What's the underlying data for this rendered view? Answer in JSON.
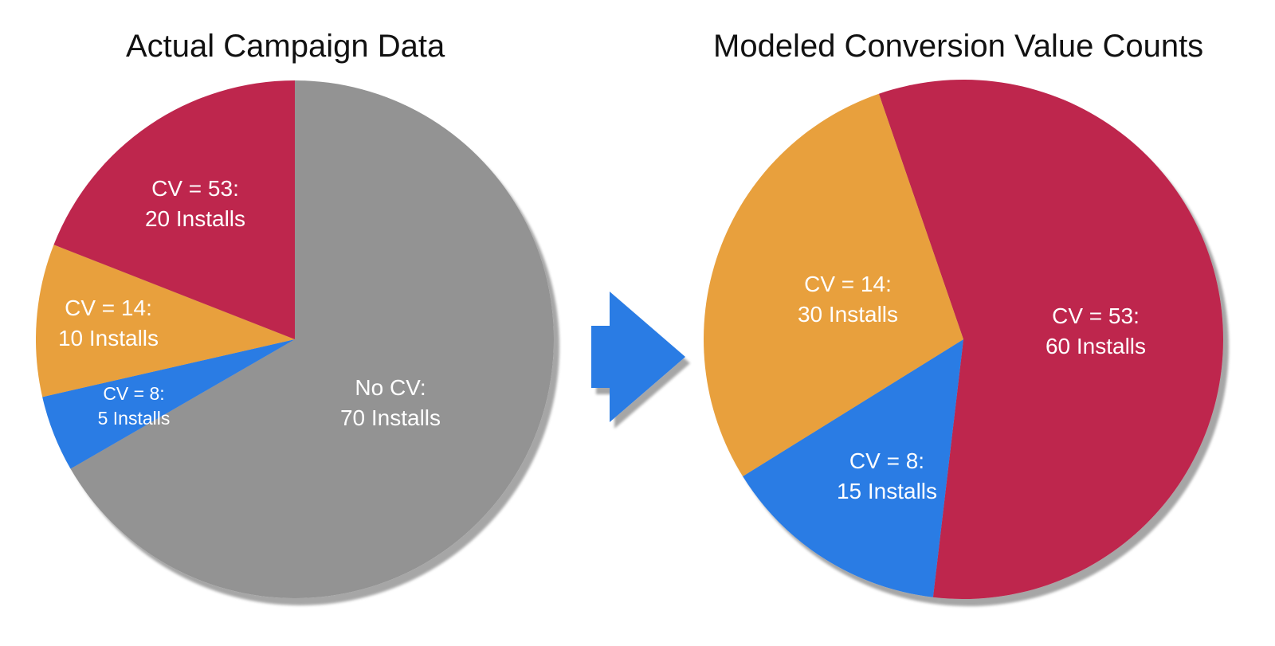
{
  "chart_data": [
    {
      "type": "pie",
      "title": "Actual Campaign Data",
      "slices": [
        {
          "name": "No CV",
          "label": "No CV:",
          "value": 70,
          "value_label": "70 Installs",
          "color": "#939393"
        },
        {
          "name": "CV = 8",
          "label": "CV = 8:",
          "value": 5,
          "value_label": "5 Installs",
          "color": "#2a7be4"
        },
        {
          "name": "CV = 14",
          "label": "CV = 14:",
          "value": 10,
          "value_label": "10 Installs",
          "color": "#e8a03e"
        },
        {
          "name": "CV = 53",
          "label": "CV = 53:",
          "value": 20,
          "value_label": "20 Installs",
          "color": "#be284e"
        }
      ]
    },
    {
      "type": "pie",
      "title": "Modeled Conversion Value Counts",
      "slices": [
        {
          "name": "CV = 53",
          "label": "CV = 53:",
          "value": 60,
          "value_label": "60 Installs",
          "color": "#be284e"
        },
        {
          "name": "CV = 8",
          "label": "CV = 8:",
          "value": 15,
          "value_label": "15 Installs",
          "color": "#2a7be4"
        },
        {
          "name": "CV = 14",
          "label": "CV = 14:",
          "value": 30,
          "value_label": "30 Installs",
          "color": "#e8a03e"
        }
      ]
    }
  ],
  "arrow": {
    "color": "#2a7be4",
    "icon": "right-arrow-icon"
  }
}
